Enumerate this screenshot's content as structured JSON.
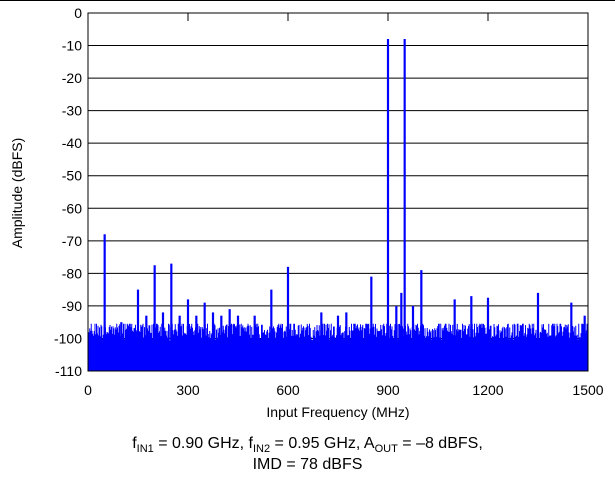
{
  "chart_data": {
    "type": "line",
    "xlabel": "Input Frequency (MHz)",
    "ylabel": "Amplitude (dBFS)",
    "xlim": [
      0,
      1500
    ],
    "ylim": [
      -110,
      0
    ],
    "x_ticks": [
      0,
      300,
      600,
      900,
      1200,
      1500
    ],
    "y_ticks": [
      0,
      -10,
      -20,
      -30,
      -40,
      -50,
      -60,
      -70,
      -80,
      -90,
      -100,
      -110
    ],
    "grid": true,
    "noise_floor": [
      -100,
      -96
    ],
    "spurs": [
      {
        "x": 50,
        "y": -68
      },
      {
        "x": 100,
        "y": -95
      },
      {
        "x": 150,
        "y": -85
      },
      {
        "x": 175,
        "y": -93
      },
      {
        "x": 200,
        "y": -77.5
      },
      {
        "x": 225,
        "y": -92
      },
      {
        "x": 250,
        "y": -77
      },
      {
        "x": 275,
        "y": -93
      },
      {
        "x": 300,
        "y": -88
      },
      {
        "x": 325,
        "y": -93
      },
      {
        "x": 350,
        "y": -89
      },
      {
        "x": 375,
        "y": -92
      },
      {
        "x": 400,
        "y": -93
      },
      {
        "x": 425,
        "y": -91
      },
      {
        "x": 450,
        "y": -93
      },
      {
        "x": 500,
        "y": -93
      },
      {
        "x": 550,
        "y": -85
      },
      {
        "x": 600,
        "y": -78
      },
      {
        "x": 700,
        "y": -92
      },
      {
        "x": 750,
        "y": -93
      },
      {
        "x": 775,
        "y": -92
      },
      {
        "x": 850,
        "y": -81
      },
      {
        "x": 900,
        "y": -8
      },
      {
        "x": 925,
        "y": -90
      },
      {
        "x": 940,
        "y": -86
      },
      {
        "x": 950,
        "y": -8
      },
      {
        "x": 975,
        "y": -90
      },
      {
        "x": 1000,
        "y": -79
      },
      {
        "x": 1100,
        "y": -88
      },
      {
        "x": 1150,
        "y": -87
      },
      {
        "x": 1200,
        "y": -87.5
      },
      {
        "x": 1350,
        "y": -86
      },
      {
        "x": 1450,
        "y": -89
      },
      {
        "x": 1490,
        "y": -93
      }
    ]
  },
  "figure_id": "D056",
  "caption": {
    "f_in1_base": "f",
    "f_in1_sub": "IN1",
    "f_in1_value": " = 0.90 GHz, ",
    "f_in2_base": "f",
    "f_in2_sub": "IN2",
    "f_in2_value": " = 0.95 GHz, ",
    "a_out_base": "A",
    "a_out_sub": "OUT",
    "a_out_value": " = –8 dBFS,",
    "line2": "IMD = 78 dBFS"
  },
  "colors": {
    "trace": "#0000ff",
    "axis": "#000000",
    "grid": "#000000"
  }
}
